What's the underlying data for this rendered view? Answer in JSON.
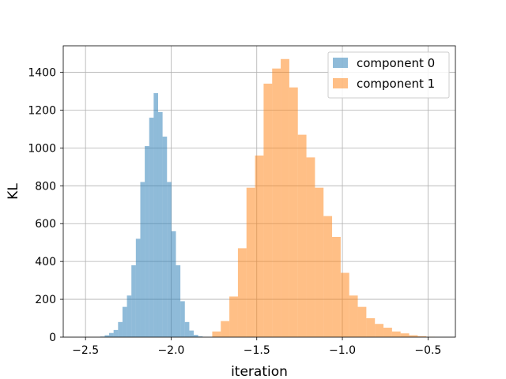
{
  "chart_data": {
    "type": "bar",
    "xlabel": "iteration",
    "ylabel": "KL",
    "xlim": [
      -2.63,
      -0.34
    ],
    "ylim": [
      0,
      1540
    ],
    "grid": true,
    "legend_position": "top-right",
    "x_ticks": [
      -2.5,
      -2.0,
      -1.5,
      -1.0,
      -0.5
    ],
    "x_tick_labels": [
      "−2.5",
      "−2.0",
      "−1.5",
      "−1.0",
      "−0.5"
    ],
    "y_ticks": [
      0,
      200,
      400,
      600,
      800,
      1000,
      1200,
      1400
    ],
    "y_tick_labels": [
      "0",
      "200",
      "400",
      "600",
      "800",
      "1000",
      "1200",
      "1400"
    ],
    "series": [
      {
        "name": "component 0",
        "color": "#1f77b4",
        "opacity": 0.5,
        "bin_edges": [
          -2.414,
          -2.388,
          -2.362,
          -2.336,
          -2.31,
          -2.284,
          -2.258,
          -2.232,
          -2.206,
          -2.18,
          -2.154,
          -2.128,
          -2.102,
          -2.076,
          -2.05,
          -2.024,
          -1.998,
          -1.972,
          -1.946,
          -1.92,
          -1.894,
          -1.868,
          -1.842,
          -1.816
        ],
        "counts": [
          3,
          10,
          22,
          38,
          80,
          160,
          220,
          380,
          520,
          820,
          1010,
          1160,
          1290,
          1190,
          1060,
          820,
          560,
          380,
          190,
          80,
          35,
          12,
          4
        ]
      },
      {
        "name": "component 1",
        "color": "#ff7f0e",
        "opacity": 0.5,
        "bin_edges": [
          -1.76,
          -1.71,
          -1.66,
          -1.61,
          -1.56,
          -1.51,
          -1.46,
          -1.41,
          -1.36,
          -1.31,
          -1.26,
          -1.21,
          -1.16,
          -1.11,
          -1.06,
          -1.01,
          -0.96,
          -0.91,
          -0.86,
          -0.81,
          -0.76,
          -0.71,
          -0.66,
          -0.61,
          -0.56,
          -0.51,
          -0.46
        ],
        "counts": [
          30,
          85,
          215,
          470,
          790,
          960,
          1340,
          1420,
          1470,
          1320,
          1070,
          950,
          790,
          640,
          530,
          340,
          220,
          160,
          100,
          70,
          50,
          30,
          20,
          10,
          5,
          2
        ]
      }
    ]
  }
}
